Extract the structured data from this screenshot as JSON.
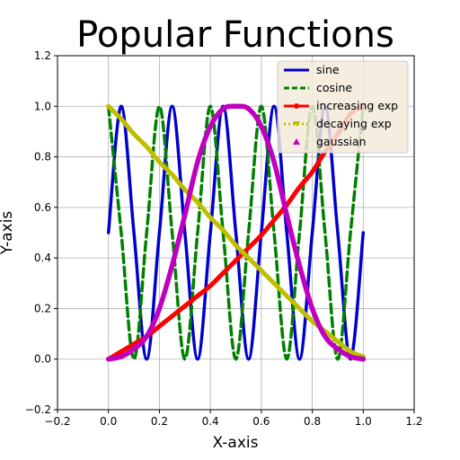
{
  "chart_data": {
    "type": "line",
    "title": "Popular Functions",
    "xlabel": "X-axis",
    "ylabel": "Y-axis",
    "xlim": [
      -0.2,
      1.2
    ],
    "ylim": [
      -0.2,
      1.2
    ],
    "xticks": [
      "−0.2",
      "0.0",
      "0.2",
      "0.4",
      "0.6",
      "0.8",
      "1.0",
      "1.2"
    ],
    "yticks": [
      "−0.2",
      "0.0",
      "0.2",
      "0.4",
      "0.6",
      "0.8",
      "1.0",
      "1.2"
    ],
    "grid": true,
    "legend_position": "top-right",
    "x": [
      0.0,
      0.05,
      0.1,
      0.15,
      0.2,
      0.25,
      0.3,
      0.35,
      0.4,
      0.45,
      0.5,
      0.55,
      0.6,
      0.65,
      0.7,
      0.75,
      0.8,
      0.85,
      0.9,
      0.95,
      1.0
    ],
    "series": [
      {
        "name": "sine",
        "color": "#0000cc",
        "style": "solid",
        "values": [
          0.5,
          1.0,
          0.5,
          0.0,
          0.5,
          1.0,
          0.5,
          0.0,
          0.5,
          1.0,
          0.5,
          0.0,
          0.5,
          1.0,
          0.5,
          0.0,
          0.5,
          1.0,
          0.5,
          0.0,
          0.5
        ]
      },
      {
        "name": "cosine",
        "color": "#008000",
        "style": "dashed",
        "values": [
          1.0,
          0.5,
          0.0,
          0.5,
          1.0,
          0.5,
          0.0,
          0.5,
          1.0,
          0.5,
          0.0,
          0.5,
          1.0,
          0.5,
          0.0,
          0.5,
          1.0,
          0.5,
          0.0,
          0.5,
          1.0
        ]
      },
      {
        "name": "increasing exp",
        "color": "#ff0000",
        "style": "solid-marker",
        "values": [
          0.0,
          0.03,
          0.06,
          0.09,
          0.13,
          0.17,
          0.21,
          0.25,
          0.29,
          0.34,
          0.39,
          0.44,
          0.49,
          0.55,
          0.61,
          0.68,
          0.74,
          0.82,
          0.89,
          0.97,
          1.0
        ]
      },
      {
        "name": "decaying exp",
        "color": "#bfbf00",
        "style": "dotted-marker",
        "values": [
          1.0,
          0.95,
          0.89,
          0.84,
          0.78,
          0.73,
          0.67,
          0.62,
          0.56,
          0.51,
          0.45,
          0.4,
          0.35,
          0.3,
          0.25,
          0.2,
          0.15,
          0.11,
          0.07,
          0.03,
          0.01
        ]
      },
      {
        "name": "gaussian",
        "color": "#bf00bf",
        "style": "markers",
        "values": [
          0.0,
          0.01,
          0.04,
          0.09,
          0.2,
          0.37,
          0.57,
          0.78,
          0.92,
          0.99,
          1.0,
          0.99,
          0.92,
          0.78,
          0.57,
          0.37,
          0.2,
          0.09,
          0.04,
          0.01,
          0.0
        ]
      }
    ]
  }
}
